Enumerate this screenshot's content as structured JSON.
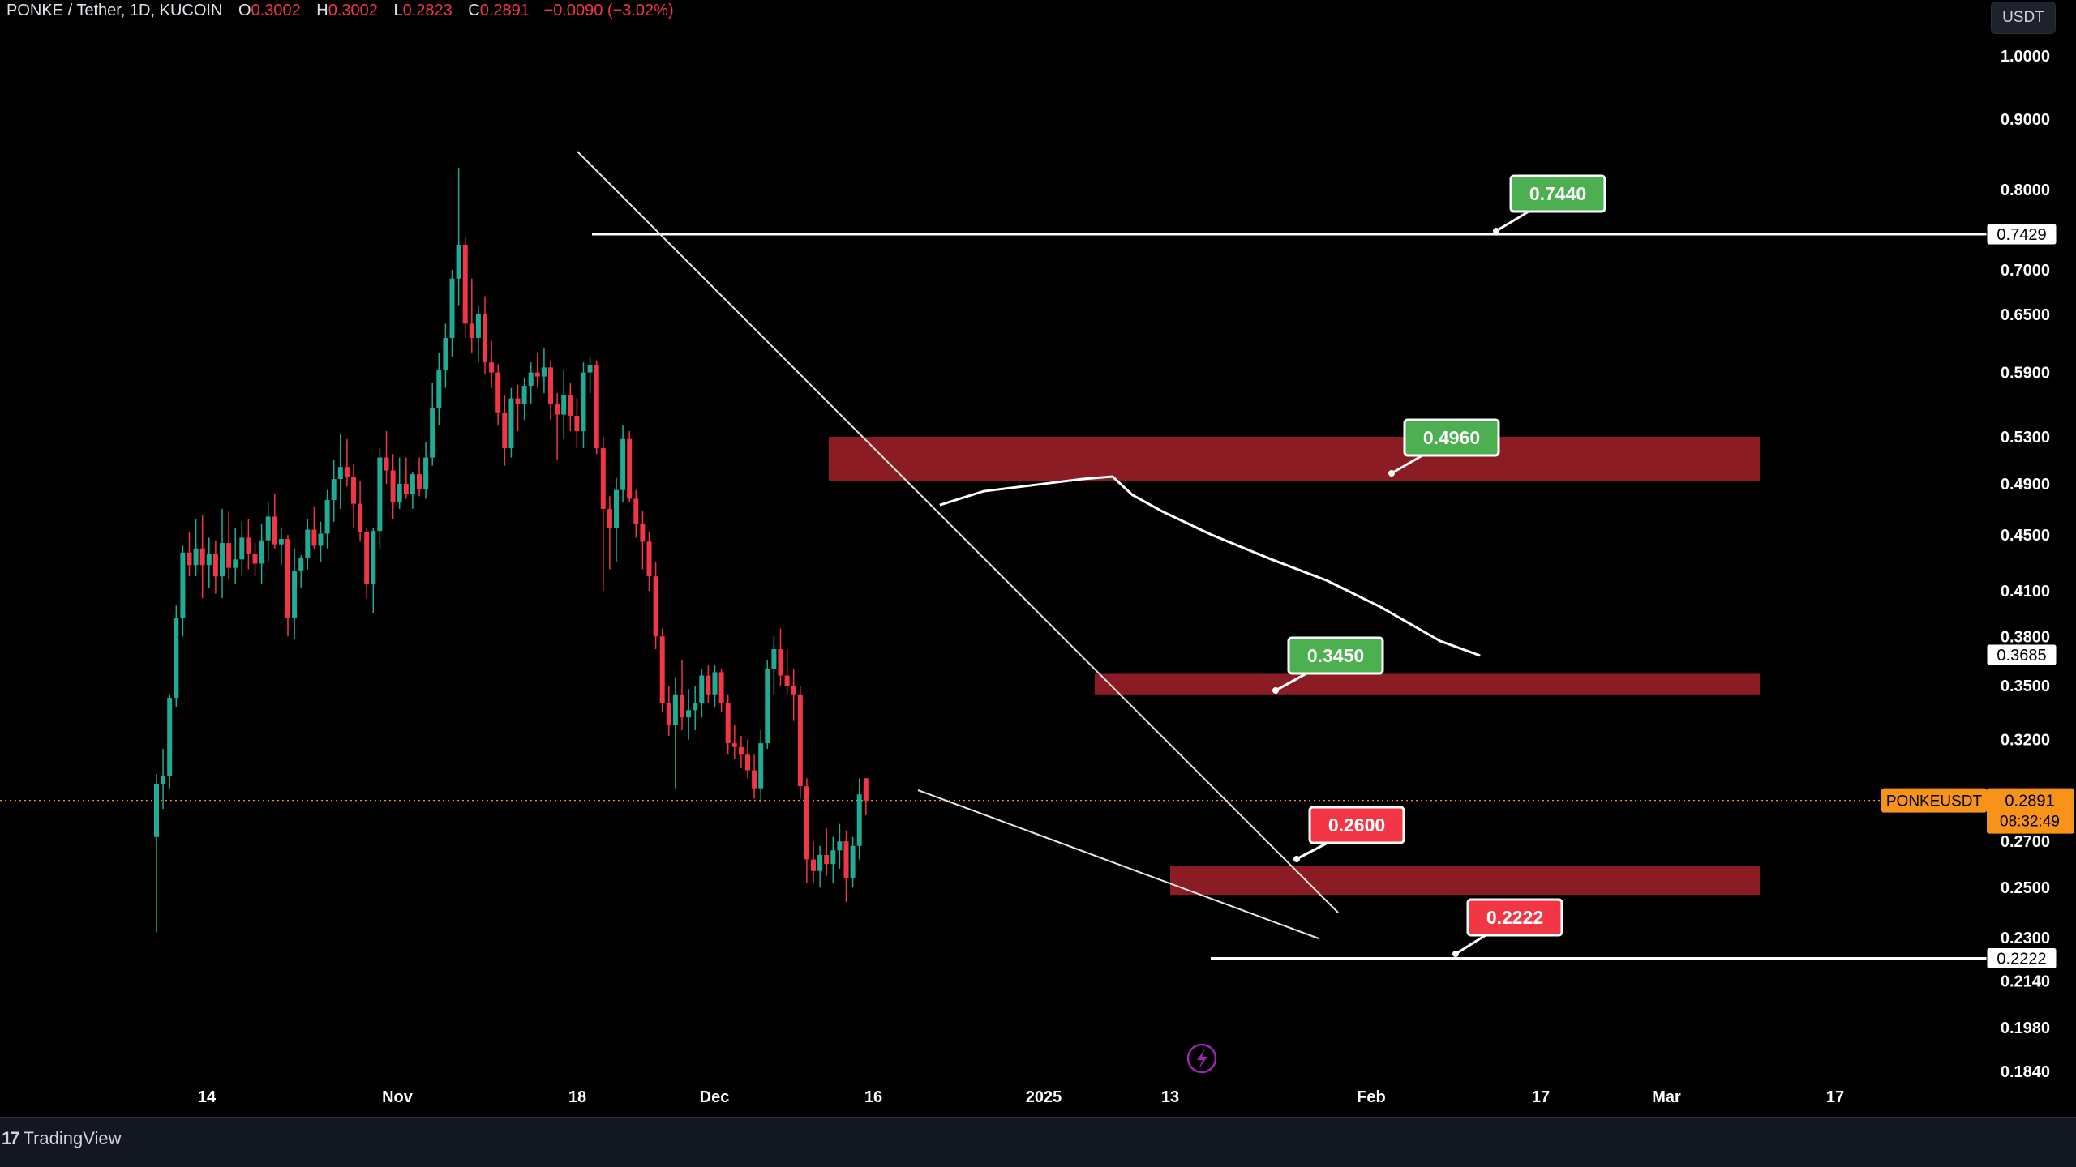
{
  "header": {
    "symbol": "PONKE / Tether, 1D, KUCOIN",
    "open_label": "O",
    "open": "0.3002",
    "high_label": "H",
    "high": "0.3002",
    "low_label": "L",
    "low": "0.2823",
    "close_label": "C",
    "close": "0.2891",
    "change": "−0.0090 (−3.02%)"
  },
  "currency_button": "USDT",
  "footer": {
    "brand": "TradingView"
  },
  "colors": {
    "up": "#22ab94",
    "down": "#f23645",
    "zone": "#8b1c24",
    "price_line": "#f7931a",
    "green_label": "#4caf50",
    "red_label": "#f23645"
  },
  "chart_data": {
    "type": "candlestick",
    "symbol": "PONKEUSDT",
    "x_ticks": [
      "14",
      "Nov",
      "18",
      "Dec",
      "16",
      "2025",
      "13",
      "Feb",
      "17",
      "Mar",
      "17"
    ],
    "y_ticks": [
      "1.0000",
      "0.9000",
      "0.8000",
      "0.7000",
      "0.6500",
      "0.5900",
      "0.5300",
      "0.4900",
      "0.4500",
      "0.4100",
      "0.3800",
      "0.3500",
      "0.3200",
      "0.2700",
      "0.2500",
      "0.2300",
      "0.2140",
      "0.1980",
      "0.1840"
    ],
    "y_scale": "log",
    "ylim": [
      0.176,
      1.04
    ],
    "candles": [
      [
        0.272,
        0.302,
        0.232,
        0.297
      ],
      [
        0.297,
        0.315,
        0.285,
        0.301
      ],
      [
        0.301,
        0.345,
        0.295,
        0.343
      ],
      [
        0.343,
        0.4,
        0.338,
        0.392
      ],
      [
        0.392,
        0.442,
        0.38,
        0.437
      ],
      [
        0.437,
        0.452,
        0.42,
        0.428
      ],
      [
        0.428,
        0.462,
        0.42,
        0.44
      ],
      [
        0.44,
        0.465,
        0.405,
        0.428
      ],
      [
        0.428,
        0.448,
        0.412,
        0.436
      ],
      [
        0.436,
        0.446,
        0.408,
        0.42
      ],
      [
        0.42,
        0.47,
        0.405,
        0.444
      ],
      [
        0.444,
        0.468,
        0.418,
        0.426
      ],
      [
        0.426,
        0.455,
        0.415,
        0.432
      ],
      [
        0.432,
        0.46,
        0.42,
        0.448
      ],
      [
        0.448,
        0.462,
        0.425,
        0.436
      ],
      [
        0.436,
        0.444,
        0.42,
        0.429
      ],
      [
        0.429,
        0.458,
        0.415,
        0.446
      ],
      [
        0.446,
        0.475,
        0.43,
        0.464
      ],
      [
        0.464,
        0.482,
        0.44,
        0.443
      ],
      [
        0.443,
        0.455,
        0.428,
        0.447
      ],
      [
        0.447,
        0.45,
        0.38,
        0.392
      ],
      [
        0.392,
        0.44,
        0.378,
        0.424
      ],
      [
        0.424,
        0.435,
        0.412,
        0.433
      ],
      [
        0.433,
        0.462,
        0.425,
        0.454
      ],
      [
        0.454,
        0.472,
        0.44,
        0.442
      ],
      [
        0.442,
        0.46,
        0.43,
        0.451
      ],
      [
        0.451,
        0.485,
        0.44,
        0.477
      ],
      [
        0.477,
        0.51,
        0.46,
        0.494
      ],
      [
        0.494,
        0.533,
        0.47,
        0.504
      ],
      [
        0.504,
        0.528,
        0.488,
        0.496
      ],
      [
        0.496,
        0.506,
        0.455,
        0.474
      ],
      [
        0.474,
        0.492,
        0.445,
        0.452
      ],
      [
        0.452,
        0.455,
        0.405,
        0.415
      ],
      [
        0.415,
        0.455,
        0.395,
        0.453
      ],
      [
        0.453,
        0.52,
        0.44,
        0.512
      ],
      [
        0.512,
        0.535,
        0.49,
        0.501
      ],
      [
        0.501,
        0.515,
        0.462,
        0.475
      ],
      [
        0.475,
        0.512,
        0.47,
        0.49
      ],
      [
        0.49,
        0.512,
        0.478,
        0.482
      ],
      [
        0.482,
        0.5,
        0.47,
        0.498
      ],
      [
        0.498,
        0.512,
        0.48,
        0.486
      ],
      [
        0.486,
        0.525,
        0.478,
        0.512
      ],
      [
        0.512,
        0.58,
        0.505,
        0.556
      ],
      [
        0.556,
        0.61,
        0.54,
        0.592
      ],
      [
        0.592,
        0.64,
        0.575,
        0.625
      ],
      [
        0.625,
        0.7,
        0.605,
        0.69
      ],
      [
        0.69,
        0.83,
        0.66,
        0.73
      ],
      [
        0.73,
        0.74,
        0.625,
        0.64
      ],
      [
        0.64,
        0.69,
        0.61,
        0.625
      ],
      [
        0.625,
        0.66,
        0.6,
        0.65
      ],
      [
        0.65,
        0.67,
        0.588,
        0.6
      ],
      [
        0.6,
        0.622,
        0.575,
        0.59
      ],
      [
        0.59,
        0.598,
        0.54,
        0.552
      ],
      [
        0.552,
        0.568,
        0.505,
        0.52
      ],
      [
        0.52,
        0.575,
        0.512,
        0.565
      ],
      [
        0.565,
        0.578,
        0.535,
        0.56
      ],
      [
        0.56,
        0.585,
        0.545,
        0.577
      ],
      [
        0.577,
        0.6,
        0.56,
        0.59
      ],
      [
        0.59,
        0.61,
        0.575,
        0.586
      ],
      [
        0.586,
        0.615,
        0.57,
        0.595
      ],
      [
        0.595,
        0.602,
        0.545,
        0.56
      ],
      [
        0.56,
        0.57,
        0.51,
        0.55
      ],
      [
        0.55,
        0.592,
        0.528,
        0.568
      ],
      [
        0.568,
        0.58,
        0.535,
        0.549
      ],
      [
        0.549,
        0.565,
        0.52,
        0.535
      ],
      [
        0.535,
        0.6,
        0.52,
        0.59
      ],
      [
        0.59,
        0.605,
        0.57,
        0.597
      ],
      [
        0.597,
        0.602,
        0.515,
        0.52
      ],
      [
        0.52,
        0.53,
        0.41,
        0.47
      ],
      [
        0.47,
        0.48,
        0.425,
        0.455
      ],
      [
        0.455,
        0.495,
        0.43,
        0.485
      ],
      [
        0.485,
        0.54,
        0.475,
        0.528
      ],
      [
        0.528,
        0.535,
        0.475,
        0.478
      ],
      [
        0.478,
        0.485,
        0.448,
        0.458
      ],
      [
        0.458,
        0.468,
        0.425,
        0.445
      ],
      [
        0.445,
        0.452,
        0.41,
        0.42
      ],
      [
        0.42,
        0.43,
        0.372,
        0.38
      ],
      [
        0.38,
        0.385,
        0.335,
        0.34
      ],
      [
        0.34,
        0.35,
        0.322,
        0.328
      ],
      [
        0.328,
        0.355,
        0.295,
        0.345
      ],
      [
        0.345,
        0.365,
        0.325,
        0.332
      ],
      [
        0.332,
        0.348,
        0.32,
        0.336
      ],
      [
        0.336,
        0.35,
        0.325,
        0.34
      ],
      [
        0.34,
        0.36,
        0.332,
        0.356
      ],
      [
        0.356,
        0.362,
        0.34,
        0.345
      ],
      [
        0.345,
        0.362,
        0.338,
        0.358
      ],
      [
        0.358,
        0.36,
        0.335,
        0.34
      ],
      [
        0.34,
        0.345,
        0.312,
        0.318
      ],
      [
        0.318,
        0.328,
        0.31,
        0.316
      ],
      [
        0.316,
        0.322,
        0.305,
        0.312
      ],
      [
        0.312,
        0.32,
        0.3,
        0.304
      ],
      [
        0.304,
        0.312,
        0.29,
        0.295
      ],
      [
        0.295,
        0.325,
        0.288,
        0.318
      ],
      [
        0.318,
        0.365,
        0.315,
        0.36
      ],
      [
        0.36,
        0.38,
        0.345,
        0.372
      ],
      [
        0.372,
        0.385,
        0.35,
        0.356
      ],
      [
        0.356,
        0.372,
        0.345,
        0.35
      ],
      [
        0.35,
        0.36,
        0.33,
        0.345
      ],
      [
        0.345,
        0.35,
        0.29,
        0.296
      ],
      [
        0.296,
        0.3,
        0.252,
        0.262
      ],
      [
        0.262,
        0.27,
        0.252,
        0.257
      ],
      [
        0.257,
        0.268,
        0.25,
        0.264
      ],
      [
        0.264,
        0.276,
        0.255,
        0.26
      ],
      [
        0.26,
        0.272,
        0.252,
        0.266
      ],
      [
        0.266,
        0.278,
        0.258,
        0.27
      ],
      [
        0.27,
        0.275,
        0.244,
        0.254
      ],
      [
        0.254,
        0.272,
        0.25,
        0.268
      ],
      [
        0.268,
        0.3,
        0.262,
        0.292
      ],
      [
        0.3,
        0.3,
        0.282,
        0.289
      ]
    ],
    "moving_average": [
      [
        0.473,
        0.473
      ],
      [
        0.495,
        0.484
      ],
      [
        0.525,
        0.49
      ],
      [
        0.545,
        0.494
      ],
      [
        0.56,
        0.496
      ],
      [
        0.57,
        0.481
      ],
      [
        0.585,
        0.468
      ],
      [
        0.61,
        0.45
      ],
      [
        0.64,
        0.432
      ],
      [
        0.668,
        0.417
      ],
      [
        0.695,
        0.399
      ],
      [
        0.725,
        0.377
      ],
      [
        0.745,
        0.368
      ]
    ],
    "horizontal_levels": [
      {
        "value": 0.7429,
        "axis_label": "0.7429",
        "callout": "0.7440",
        "callout_color": "green"
      },
      {
        "value": 0.2222,
        "axis_label": "0.2222",
        "callout": "0.2222",
        "callout_color": "red"
      }
    ],
    "zones": [
      {
        "top": 0.53,
        "bottom": 0.492,
        "callout": "0.4960",
        "callout_color": "green"
      },
      {
        "top": 0.357,
        "bottom": 0.345,
        "callout": "0.3450",
        "callout_color": "green"
      },
      {
        "top": 0.259,
        "bottom": 0.247,
        "callout": "0.2600",
        "callout_color": "red"
      }
    ],
    "current_price": {
      "label": "PONKEUSDT",
      "value": "0.2891",
      "countdown": "08:32:49"
    },
    "marker_label": "0.3685",
    "trend_lines": [
      {
        "from": [
          0.85,
          0.85
        ],
        "to": [
          1.007,
          0.232
        ],
        "note": "upper descending"
      },
      {
        "from": [
          0.6935,
          0.2875
        ],
        "to": [
          1.011,
          0.221
        ],
        "note": "lower descending"
      }
    ]
  }
}
